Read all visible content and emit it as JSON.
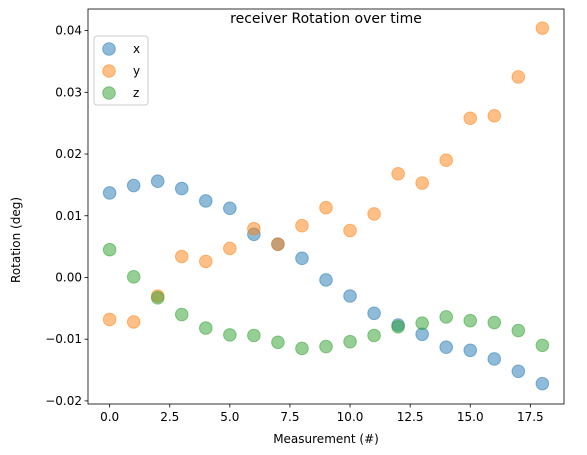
{
  "chart_data": {
    "type": "scatter",
    "title": "receiver Rotation over time",
    "xlabel": "Measurement (#)",
    "ylabel": "Rotation (deg)",
    "xlim": [
      -0.9,
      18.9
    ],
    "ylim": [
      -0.0205,
      0.0435
    ],
    "xticks": [
      0.0,
      2.5,
      5.0,
      7.5,
      10.0,
      12.5,
      15.0,
      17.5
    ],
    "xtick_labels": [
      "0.0",
      "2.5",
      "5.0",
      "7.5",
      "10.0",
      "12.5",
      "15.0",
      "17.5"
    ],
    "yticks": [
      -0.02,
      -0.01,
      0.0,
      0.01,
      0.02,
      0.03,
      0.04
    ],
    "ytick_labels": [
      "−0.02",
      "−0.01",
      "0.00",
      "0.01",
      "0.02",
      "0.03",
      "0.04"
    ],
    "legend_position": "top-left",
    "x": [
      0,
      1,
      2,
      3,
      4,
      5,
      6,
      7,
      8,
      9,
      10,
      11,
      12,
      13,
      14,
      15,
      16,
      17,
      18
    ],
    "series": [
      {
        "name": "x",
        "color": "#1f77b4",
        "values": [
          0.0137,
          0.0149,
          0.0156,
          0.0144,
          0.0124,
          0.0112,
          0.007,
          0.0054,
          0.0031,
          -0.0004,
          -0.003,
          -0.0058,
          -0.0077,
          -0.0092,
          -0.0113,
          -0.0118,
          -0.0132,
          -0.0152,
          -0.0172
        ]
      },
      {
        "name": "y",
        "color": "#ff7f0e",
        "values": [
          -0.0068,
          -0.0072,
          -0.003,
          0.0034,
          0.0026,
          0.0047,
          0.0079,
          0.0054,
          0.0084,
          0.0113,
          0.0076,
          0.0103,
          0.0168,
          0.0153,
          0.019,
          0.0258,
          0.0262,
          0.0325,
          0.0404
        ]
      },
      {
        "name": "z",
        "color": "#2ca02c",
        "values": [
          0.0045,
          0.0001,
          -0.0033,
          -0.006,
          -0.0082,
          -0.0093,
          -0.0094,
          -0.0105,
          -0.0115,
          -0.0112,
          -0.0104,
          -0.0094,
          -0.008,
          -0.0074,
          -0.0064,
          -0.007,
          -0.0073,
          -0.0086,
          -0.011
        ]
      }
    ]
  }
}
